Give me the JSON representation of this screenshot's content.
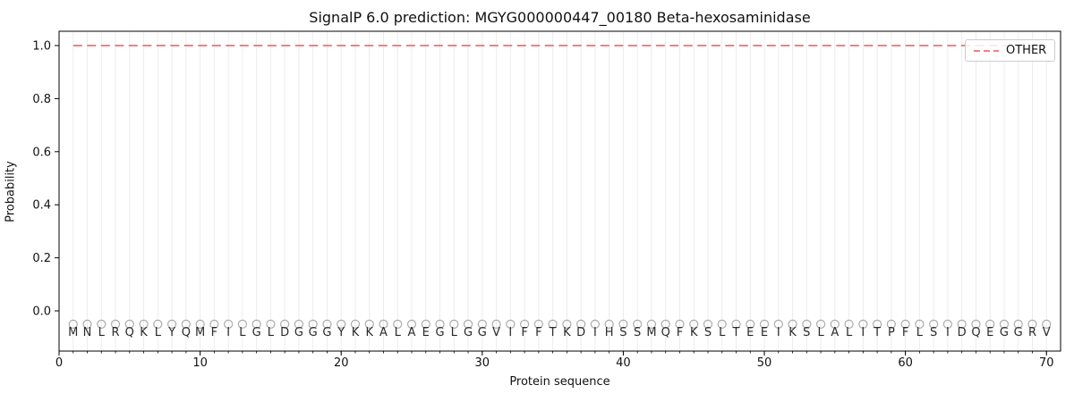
{
  "title": "SignalP 6.0 prediction: MGYG000000447_00180 Beta-hexosaminidase",
  "axes": {
    "xlabel": "Protein sequence",
    "ylabel": "Probability",
    "x_ticks": [
      0,
      10,
      20,
      30,
      40,
      50,
      60,
      70
    ],
    "y_ticks": [
      0.0,
      0.2,
      0.4,
      0.6,
      0.8,
      1.0
    ],
    "y_tick_labels": [
      "0.0",
      "0.2",
      "0.4",
      "0.6",
      "0.8",
      "1.0"
    ]
  },
  "legend": {
    "label": "OTHER",
    "line_color": "#f08080",
    "line_style": "dashed"
  },
  "sequence": "MNLRQKLYQMFILGLDGGGYKKALAEGLGGVIFFTKDIHSSMQFKSLTEEIKSLALITPFLSIDQEGGRV",
  "colors": {
    "other_line": "#f08080",
    "gridline": "#ececec",
    "marker_stroke": "#ababab",
    "residue_text": "#2b2b2b",
    "spine": "#000000"
  },
  "chart_data": {
    "type": "line",
    "title": "SignalP 6.0 prediction: MGYG000000447_00180 Beta-hexosaminidase",
    "xlabel": "Protein sequence",
    "ylabel": "Probability",
    "xlim": [
      0,
      71
    ],
    "ylim": [
      -0.15,
      1.05
    ],
    "grid": "vertical-per-residue",
    "legend_position": "upper right",
    "x": [
      1,
      2,
      3,
      4,
      5,
      6,
      7,
      8,
      9,
      10,
      11,
      12,
      13,
      14,
      15,
      16,
      17,
      18,
      19,
      20,
      21,
      22,
      23,
      24,
      25,
      26,
      27,
      28,
      29,
      30,
      31,
      32,
      33,
      34,
      35,
      36,
      37,
      38,
      39,
      40,
      41,
      42,
      43,
      44,
      45,
      46,
      47,
      48,
      49,
      50,
      51,
      52,
      53,
      54,
      55,
      56,
      57,
      58,
      59,
      60,
      61,
      62,
      63,
      64,
      65,
      66,
      67,
      68,
      69,
      70
    ],
    "series": [
      {
        "name": "OTHER",
        "style": "dashed",
        "color": "#f08080",
        "values": [
          1.0,
          1.0,
          1.0,
          1.0,
          1.0,
          1.0,
          1.0,
          1.0,
          1.0,
          1.0,
          1.0,
          1.0,
          1.0,
          1.0,
          1.0,
          1.0,
          1.0,
          1.0,
          1.0,
          1.0,
          1.0,
          1.0,
          1.0,
          1.0,
          1.0,
          1.0,
          1.0,
          1.0,
          1.0,
          1.0,
          1.0,
          1.0,
          1.0,
          1.0,
          1.0,
          1.0,
          1.0,
          1.0,
          1.0,
          1.0,
          1.0,
          1.0,
          1.0,
          1.0,
          1.0,
          1.0,
          1.0,
          1.0,
          1.0,
          1.0,
          1.0,
          1.0,
          1.0,
          1.0,
          1.0,
          1.0,
          1.0,
          1.0,
          1.0,
          1.0,
          1.0,
          1.0,
          1.0,
          1.0,
          1.0,
          1.0,
          1.0,
          1.0,
          1.0,
          1.0
        ]
      }
    ],
    "residue_markers": {
      "shape": "open-circle",
      "y": -0.05,
      "labels": "MNLRQKLYQMFILGLDGGGYKKALAEGLGGVIFFTKDIHSSMQFKSLTEEIKSLALITPFLSIDQEGGRV"
    }
  }
}
